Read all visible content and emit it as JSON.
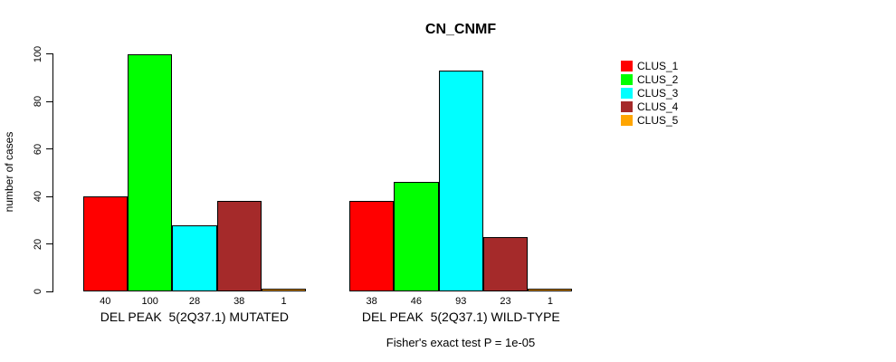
{
  "page": {
    "background": "#ffffff"
  },
  "chart_data": {
    "type": "bar",
    "title": "CN_CNMF",
    "ylabel": "number of cases",
    "xlabel": "",
    "ylim": [
      0,
      100
    ],
    "yticks": [
      0,
      20,
      40,
      60,
      80,
      100
    ],
    "grid": false,
    "legend_position": "right-outside",
    "series_names": [
      "CLUS_1",
      "CLUS_2",
      "CLUS_3",
      "CLUS_4",
      "CLUS_5"
    ],
    "series_colors": [
      "#ff0000",
      "#00ff00",
      "#00ffff",
      "#a52a2a",
      "#ffa500"
    ],
    "groups": [
      {
        "label": "DEL PEAK  5(2Q37.1) MUTATED",
        "values": [
          40,
          100,
          28,
          38,
          1
        ]
      },
      {
        "label": "DEL PEAK  5(2Q37.1) WILD-TYPE",
        "values": [
          38,
          46,
          93,
          23,
          1
        ]
      }
    ],
    "annotation": "Fisher's exact test P = 1e-05"
  },
  "legend": {
    "items": [
      {
        "label": "CLUS_1",
        "color": "#ff0000"
      },
      {
        "label": "CLUS_2",
        "color": "#00ff00"
      },
      {
        "label": "CLUS_3",
        "color": "#00ffff"
      },
      {
        "label": "CLUS_4",
        "color": "#a52a2a"
      },
      {
        "label": "CLUS_5",
        "color": "#ffa500"
      }
    ]
  }
}
